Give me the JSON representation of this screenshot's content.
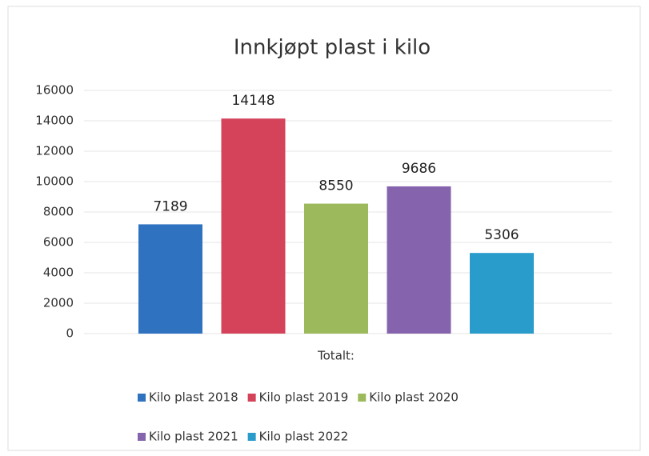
{
  "chart_data": {
    "type": "bar",
    "title": "Innkjøpt plast i kilo",
    "categories": [
      "Totalt:"
    ],
    "series": [
      {
        "name": "Kilo plast 2018",
        "color": "#2f72c0",
        "values": [
          7189
        ]
      },
      {
        "name": "Kilo plast 2019",
        "color": "#d4435a",
        "values": [
          14148
        ]
      },
      {
        "name": "Kilo plast 2020",
        "color": "#9cba5c",
        "values": [
          8550
        ]
      },
      {
        "name": "Kilo plast 2021",
        "color": "#8564ad",
        "values": [
          9686
        ]
      },
      {
        "name": "Kilo plast 2022",
        "color": "#2a9ccb",
        "values": [
          5306
        ]
      }
    ],
    "ylim": [
      0,
      16000
    ],
    "yticks": [
      0,
      2000,
      4000,
      6000,
      8000,
      10000,
      12000,
      14000,
      16000
    ],
    "grid": true,
    "legend": "bottom"
  }
}
